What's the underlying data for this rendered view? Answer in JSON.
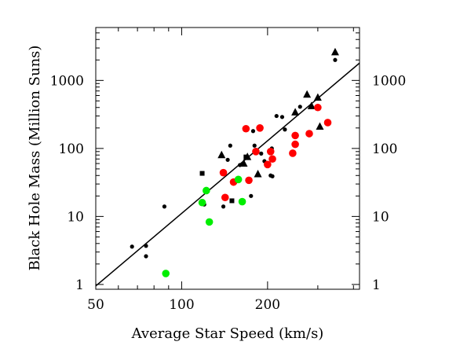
{
  "chart_data": {
    "type": "scatter",
    "title": "",
    "xlabel": "Average Star Speed (km/s)",
    "ylabel": "Black Hole Mass (Million Suns)",
    "x_scale": "log",
    "y_scale": "log",
    "xlim": [
      50,
      420
    ],
    "ylim": [
      0.85,
      6000
    ],
    "x_ticks": [
      {
        "value": 50,
        "label": "50"
      },
      {
        "value": 100,
        "label": "100"
      },
      {
        "value": 200,
        "label": "200"
      }
    ],
    "y_ticks": [
      {
        "value": 1,
        "label": "1"
      },
      {
        "value": 10,
        "label": "10"
      },
      {
        "value": 100,
        "label": "100"
      },
      {
        "value": 1000,
        "label": "1000"
      }
    ],
    "y_ticks_right": true,
    "grid": false,
    "legend": "none",
    "fit_line": {
      "points": [
        [
          50,
          0.95
        ],
        [
          420,
          1800
        ]
      ],
      "color": "#000000"
    },
    "series": [
      {
        "marker": "small-dot",
        "color": "#000000",
        "points": [
          [
            67,
            3.6
          ],
          [
            75,
            3.7
          ],
          [
            75,
            2.6
          ],
          [
            87,
            14
          ],
          [
            120,
            15
          ],
          [
            140,
            14
          ],
          [
            145,
            68
          ],
          [
            148,
            110
          ],
          [
            160,
            57
          ],
          [
            175,
            20
          ],
          [
            178,
            180
          ],
          [
            180,
            110
          ],
          [
            182,
            85
          ],
          [
            190,
            84
          ],
          [
            195,
            65
          ],
          [
            205,
            40
          ],
          [
            208,
            39
          ],
          [
            207,
            100
          ],
          [
            215,
            300
          ],
          [
            225,
            290
          ],
          [
            230,
            190
          ],
          [
            260,
            410
          ],
          [
            345,
            2000
          ]
        ]
      },
      {
        "marker": "square",
        "color": "#000000",
        "points": [
          [
            118,
            43
          ],
          [
            150,
            17
          ],
          [
            168,
            75
          ]
        ]
      },
      {
        "marker": "triangle",
        "color": "#000000",
        "points": [
          [
            138,
            80
          ],
          [
            165,
            60
          ],
          [
            170,
            75
          ],
          [
            185,
            42
          ],
          [
            250,
            340
          ],
          [
            275,
            620
          ],
          [
            285,
            420
          ],
          [
            300,
            560
          ],
          [
            305,
            210
          ],
          [
            345,
            2600
          ]
        ]
      },
      {
        "marker": "circle",
        "color": "#ff0000",
        "points": [
          [
            140,
            44
          ],
          [
            142,
            19
          ],
          [
            152,
            32
          ],
          [
            168,
            195
          ],
          [
            172,
            34
          ],
          [
            182,
            90
          ],
          [
            188,
            200
          ],
          [
            200,
            58
          ],
          [
            205,
            90
          ],
          [
            208,
            70
          ],
          [
            245,
            85
          ],
          [
            250,
            155
          ],
          [
            250,
            115
          ],
          [
            280,
            165
          ],
          [
            300,
            400
          ],
          [
            325,
            240
          ]
        ]
      },
      {
        "marker": "circle",
        "color": "#00ee00",
        "points": [
          [
            88,
            1.45
          ],
          [
            118,
            16
          ],
          [
            122,
            24
          ],
          [
            125,
            8.3
          ],
          [
            158,
            35
          ],
          [
            163,
            16.5
          ]
        ]
      }
    ]
  }
}
